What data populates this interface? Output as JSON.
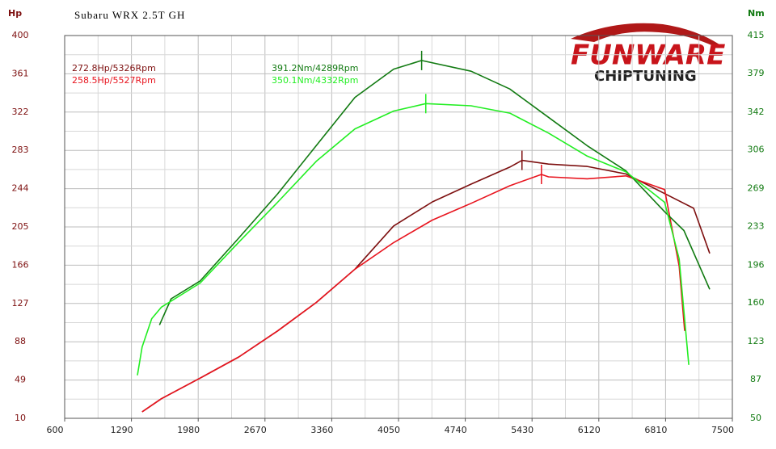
{
  "chart_data": {
    "type": "line",
    "title": "Subaru WRX 2.5T GH",
    "ylabel": "Hp",
    "y2label": "Nm",
    "logo": {
      "brand": "FUNWARE",
      "sub": "CHIPTUNING"
    },
    "xlim": [
      600,
      7500
    ],
    "xticks": [
      600,
      1290,
      1980,
      2670,
      3360,
      4050,
      4740,
      5430,
      6120,
      6810,
      7500
    ],
    "ylim": [
      10,
      400
    ],
    "yticks": [
      10,
      49,
      88,
      127,
      166,
      205,
      244,
      283,
      322,
      361,
      400
    ],
    "y2lim": [
      50,
      415
    ],
    "y2ticks": [
      50,
      87,
      123,
      160,
      196,
      233,
      269,
      306,
      342,
      379,
      415
    ],
    "grid": true,
    "series": [
      {
        "label": "272.8Hp/5326Rpm",
        "color": "#7d0f0f",
        "axis": "y",
        "x": [
          1400,
          1600,
          2000,
          2400,
          2800,
          3200,
          3600,
          4000,
          4400,
          4800,
          5200,
          5326,
          5600,
          6000,
          6400,
          6800,
          7100,
          7266
        ],
        "values": [
          16.6,
          30,
          51,
          72.5,
          99,
          128,
          162,
          206,
          230.5,
          248.6,
          266,
          272.8,
          269,
          266.6,
          259,
          239,
          224,
          178
        ]
      },
      {
        "label": "258.5Hp/5527Rpm",
        "color": "#e8141e",
        "axis": "y",
        "x": [
          1400,
          1600,
          2000,
          2400,
          2800,
          3200,
          3600,
          4000,
          4400,
          4800,
          5200,
          5527,
          5600,
          6000,
          6400,
          6800,
          6950,
          7007
        ],
        "values": [
          16.6,
          30,
          51,
          72.5,
          99,
          128,
          162,
          189,
          212,
          229,
          247,
          258.5,
          256,
          254,
          257,
          243,
          165,
          99
        ]
      },
      {
        "label": "391.2Nm/4289Rpm",
        "color": "#117a11",
        "axis": "y2",
        "x": [
          1580,
          1700,
          2000,
          2400,
          2800,
          3200,
          3600,
          4000,
          4289,
          4800,
          5200,
          5600,
          6000,
          6400,
          6800,
          7000,
          7266
        ],
        "values": [
          139,
          164,
          181,
          222,
          264,
          310,
          356,
          383,
          391.2,
          381,
          364,
          337,
          310,
          286,
          247,
          229,
          173
        ]
      },
      {
        "label": "350.1Nm/4332Rpm",
        "color": "#22ee22",
        "axis": "y2",
        "x": [
          1352,
          1400,
          1500,
          1600,
          2000,
          2400,
          2800,
          3200,
          3600,
          4000,
          4332,
          4800,
          5200,
          5600,
          6000,
          6400,
          6800,
          6950,
          7050
        ],
        "values": [
          91,
          118,
          145,
          156,
          179,
          218,
          256,
          295,
          326,
          343,
          350.1,
          348,
          341,
          322,
          300,
          285,
          256,
          202,
          101
        ]
      }
    ]
  }
}
